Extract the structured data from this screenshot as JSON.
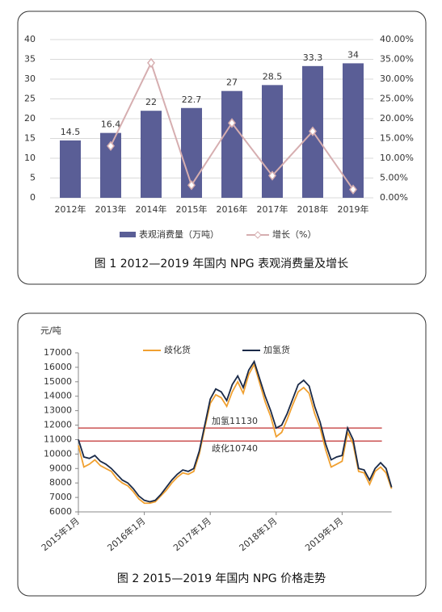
{
  "chart_data": [
    {
      "type": "bar_line",
      "categories": [
        "2012年",
        "2013年",
        "2014年",
        "2015年",
        "2016年",
        "2017年",
        "2018年",
        "2019年"
      ],
      "series": [
        {
          "name": "表观消费量（万吨）",
          "color": "#5a5e96",
          "values": [
            14.5,
            16.4,
            22,
            22.7,
            27,
            28.5,
            33.3,
            34
          ]
        },
        {
          "name": "增长（%）",
          "color": "#d6aeb0",
          "axis": "y2",
          "values": [
            null,
            13.1,
            34.1,
            3.2,
            18.9,
            5.6,
            16.8,
            2.1
          ]
        }
      ],
      "ylim": [
        0,
        40
      ],
      "yticks": [
        0,
        5,
        10,
        15,
        20,
        25,
        30,
        35,
        40
      ],
      "y2lim": [
        0,
        40
      ],
      "y2ticks": [
        {
          "value": 0,
          "label": "0.00%"
        },
        {
          "value": 5,
          "label": "5.00%"
        },
        {
          "value": 10,
          "label": "10.00%"
        },
        {
          "value": 15,
          "label": "15.00%"
        },
        {
          "value": 20,
          "label": "20.00%"
        },
        {
          "value": 25,
          "label": "25.00%"
        },
        {
          "value": 30,
          "label": "30.00%"
        },
        {
          "value": 35,
          "label": "35.00%"
        },
        {
          "value": 40,
          "label": "40.00%"
        }
      ],
      "grid": true,
      "caption": "图 1  2012—2019 年国内 NPG 表观消费量及增长"
    },
    {
      "type": "line",
      "y_label": "元/吨",
      "categories": [
        "2015年1月",
        null,
        null,
        null,
        null,
        null,
        null,
        null,
        null,
        null,
        null,
        null,
        "2016年1月",
        null,
        null,
        null,
        null,
        null,
        null,
        null,
        null,
        null,
        null,
        null,
        "2017年1月",
        null,
        null,
        null,
        null,
        null,
        null,
        null,
        null,
        null,
        null,
        null,
        "2018年1月",
        null,
        null,
        null,
        null,
        null,
        null,
        null,
        null,
        null,
        null,
        null,
        "2019年1月",
        null,
        null,
        null,
        null,
        null,
        null,
        null,
        null,
        null
      ],
      "series": [
        {
          "name": "歧化货",
          "color": "#f0a030",
          "values": [
            10600,
            9100,
            9300,
            9600,
            9200,
            9000,
            8800,
            8300,
            8000,
            7800,
            7400,
            6900,
            6600,
            6600,
            6700,
            7100,
            7500,
            8000,
            8400,
            8700,
            8600,
            8800,
            10000,
            11800,
            13500,
            14100,
            13900,
            13300,
            14300,
            15000,
            14200,
            15500,
            16200,
            14900,
            13600,
            12600,
            11200,
            11500,
            12400,
            13400,
            14300,
            14600,
            14200,
            12800,
            11800,
            10300,
            9100,
            9300,
            9500,
            11500,
            10700,
            8800,
            8700,
            7900,
            8800,
            9100,
            8700,
            7600
          ]
        },
        {
          "name": "加氢货",
          "color": "#1a2a48",
          "values": [
            11000,
            9800,
            9700,
            9900,
            9500,
            9300,
            9000,
            8600,
            8200,
            8000,
            7600,
            7100,
            6800,
            6700,
            6800,
            7200,
            7700,
            8200,
            8600,
            8900,
            8800,
            9000,
            10200,
            12000,
            13800,
            14500,
            14300,
            13700,
            14800,
            15400,
            14600,
            15800,
            16400,
            15200,
            14000,
            13000,
            11800,
            12000,
            12800,
            13800,
            14800,
            15100,
            14700,
            13300,
            12200,
            10700,
            9600,
            9800,
            9900,
            11800,
            11000,
            9000,
            8900,
            8200,
            9000,
            9400,
            9000,
            7700
          ]
        }
      ],
      "ylim": [
        6000,
        17000
      ],
      "yticks": [
        6000,
        7000,
        8000,
        9000,
        10000,
        11000,
        12000,
        13000,
        14000,
        15000,
        16000,
        17000
      ],
      "hlines": [
        {
          "value": 11800,
          "color": "#c03030"
        },
        {
          "value": 10900,
          "color": "#c03030"
        }
      ],
      "annotations": [
        "加氢11130",
        "歧化10740"
      ],
      "caption": "图 2  2015—2019 年国内 NPG 价格走势"
    }
  ]
}
